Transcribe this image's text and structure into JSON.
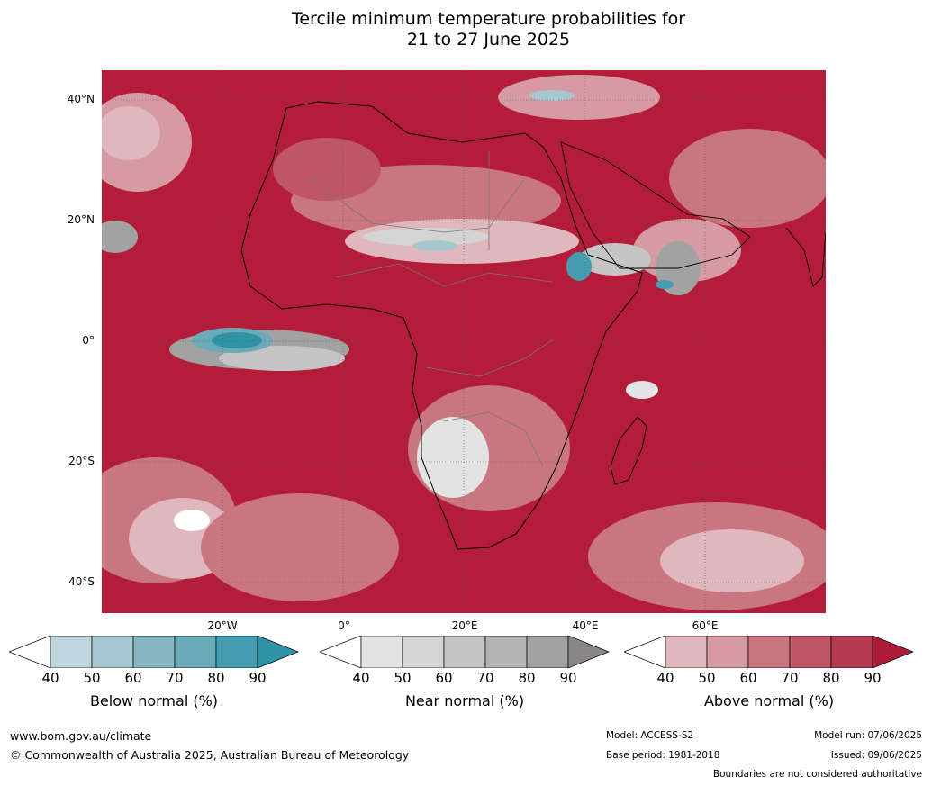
{
  "title": {
    "line1": "Tercile minimum temperature probabilities for",
    "line2": "21 to 27 June 2025"
  },
  "map": {
    "lat_labels": [
      "40°N",
      "20°N",
      "0°",
      "20°S",
      "40°S"
    ],
    "lon_labels": [
      "20°W",
      "0°",
      "20°E",
      "40°E",
      "60°E"
    ]
  },
  "colorbars": [
    {
      "title": "Below normal (%)",
      "ticks": [
        "40",
        "50",
        "60",
        "70",
        "80",
        "90"
      ],
      "colors": [
        "#ffffff",
        "#bdd6dd",
        "#a5c8d0",
        "#87b6c2",
        "#6aaab9",
        "#449eaf",
        "#2f93a6"
      ]
    },
    {
      "title": "Near normal (%)",
      "ticks": [
        "40",
        "50",
        "60",
        "70",
        "80",
        "90"
      ],
      "colors": [
        "#ffffff",
        "#e3e3e3",
        "#d4d4d4",
        "#c5c5c5",
        "#b4b4b4",
        "#a2a2a2",
        "#8a8587"
      ]
    },
    {
      "title": "Above normal (%)",
      "ticks": [
        "40",
        "50",
        "60",
        "70",
        "80",
        "90"
      ],
      "colors": [
        "#ffffff",
        "#e1b7be",
        "#d69aa4",
        "#ca7680",
        "#be5666",
        "#b5394f",
        "#ac1c38"
      ]
    }
  ],
  "footer": {
    "website": "www.bom.gov.au/climate",
    "copyright": "© Commonwealth of Australia 2025, Australian Bureau of Meteorology",
    "model": "Model: ACCESS-S2",
    "base_period": "Base period: 1981-2018",
    "model_run": "Model run: 07/06/2025",
    "issued": "Issued: 09/06/2025",
    "disclaimer": "Boundaries are not considered authoritative"
  }
}
